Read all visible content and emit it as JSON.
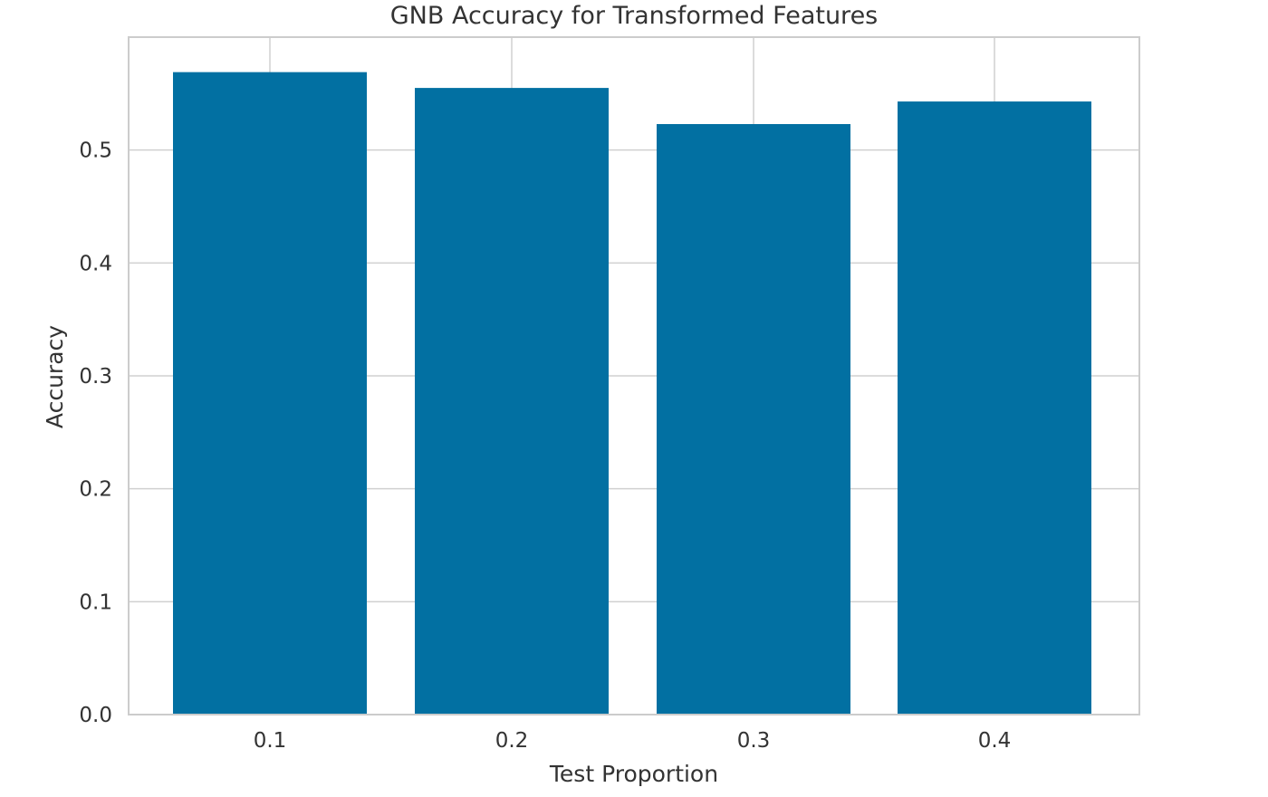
{
  "chart_data": {
    "type": "bar",
    "title": "GNB Accuracy for Transformed Features",
    "xlabel": "Test Proportion",
    "ylabel": "Accuracy",
    "categories": [
      "0.1",
      "0.2",
      "0.3",
      "0.4"
    ],
    "values": [
      0.569,
      0.555,
      0.523,
      0.543
    ],
    "ylim": [
      0.0,
      0.6
    ],
    "yticks": [
      "0.0",
      "0.1",
      "0.2",
      "0.3",
      "0.4",
      "0.5"
    ],
    "grid": true,
    "legend": false,
    "colors": {
      "bar": "#0270a2",
      "grid": "#d0d0d0",
      "frame": "#cccccc",
      "text": "#333333"
    }
  }
}
